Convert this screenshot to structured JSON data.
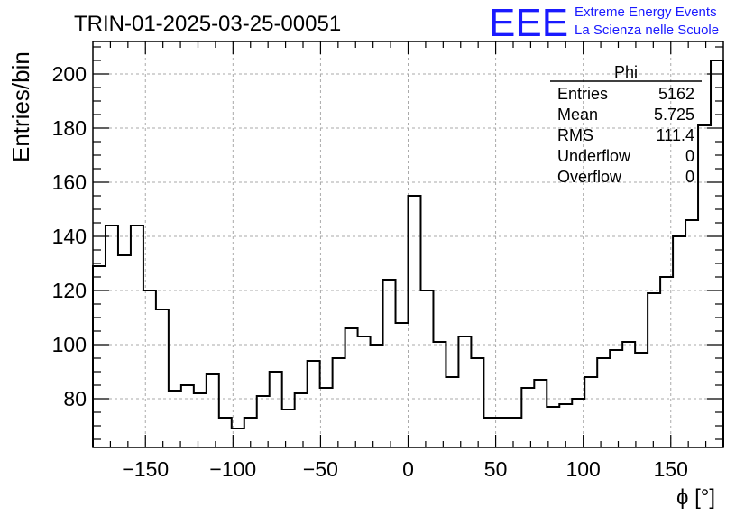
{
  "header": {
    "title": "TRIN-01-2025-03-25-00051",
    "logo_text": "EEE",
    "logo_line1": "Extreme Energy Events",
    "logo_line2": "La Scienza nelle Scuole"
  },
  "stats": {
    "title": "Phi",
    "rows": [
      {
        "label": "Entries",
        "value": "5162"
      },
      {
        "label": "Mean",
        "value": "5.725"
      },
      {
        "label": "RMS",
        "value": "111.4"
      },
      {
        "label": "Underflow",
        "value": "0"
      },
      {
        "label": "Overflow",
        "value": "0"
      }
    ]
  },
  "colors": {
    "logo": "#1a1aff",
    "line": "#000000",
    "grid": "#aaaaaa"
  },
  "chart_data": {
    "type": "bar",
    "style": "step-histogram",
    "title": "TRIN-01-2025-03-25-00051",
    "xlabel": "ϕ [°]",
    "ylabel": "Entries/bin",
    "xlim": [
      -180,
      180
    ],
    "ylim": [
      62,
      212
    ],
    "bin_width": 7.2,
    "x_ticks": [
      -150,
      -100,
      -50,
      0,
      50,
      100,
      150
    ],
    "y_ticks": [
      80,
      100,
      120,
      140,
      160,
      180,
      200
    ],
    "grid": true,
    "values": [
      129,
      144,
      133,
      144,
      120,
      113,
      83,
      85,
      82,
      89,
      73,
      69,
      73,
      81,
      90,
      76,
      82,
      94,
      84,
      95,
      106,
      103,
      100,
      124,
      108,
      155,
      120,
      101,
      88,
      103,
      95,
      73,
      73,
      73,
      84,
      87,
      77,
      78,
      80,
      88,
      95,
      98,
      101,
      97,
      119,
      125,
      140,
      146,
      181,
      205
    ]
  }
}
